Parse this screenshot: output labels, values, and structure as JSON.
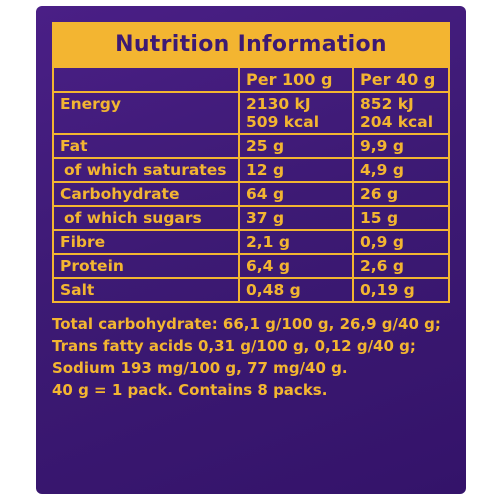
{
  "title": "Nutrition Information",
  "columns": {
    "label": "",
    "per_100g": "Per 100 g",
    "per_40g": "Per 40 g"
  },
  "rows": [
    {
      "label": "Energy",
      "per_100g": [
        "2130 kJ",
        "509 kcal"
      ],
      "per_40g": [
        "852 kJ",
        "204 kcal"
      ]
    },
    {
      "label": "Fat",
      "per_100g": [
        "25 g"
      ],
      "per_40g": [
        "9,9 g"
      ]
    },
    {
      "label": "of which saturates",
      "per_100g": [
        "12 g"
      ],
      "per_40g": [
        "4,9 g"
      ]
    },
    {
      "label": "Carbohydrate",
      "per_100g": [
        "64 g"
      ],
      "per_40g": [
        "26 g"
      ]
    },
    {
      "label": "of which sugars",
      "per_100g": [
        "37 g"
      ],
      "per_40g": [
        "15 g"
      ]
    },
    {
      "label": "Fibre",
      "per_100g": [
        "2,1 g"
      ],
      "per_40g": [
        "0,9 g"
      ]
    },
    {
      "label": "Protein",
      "per_100g": [
        "6,4 g"
      ],
      "per_40g": [
        "2,6 g"
      ]
    },
    {
      "label": "Salt",
      "per_100g": [
        "0,48 g"
      ],
      "per_40g": [
        "0,19 g"
      ]
    }
  ],
  "notes": [
    "Total carbohydrate: 66,1 g/100 g, 26,9 g/40 g;",
    "Trans fatty acids 0,31 g/100 g, 0,12 g/40 g;",
    "Sodium 193 mg/100 g, 77 mg/40 g.",
    "40 g = 1 pack. Contains 8 packs."
  ],
  "colors": {
    "background": "#3d1a74",
    "text": "#f3b531"
  }
}
